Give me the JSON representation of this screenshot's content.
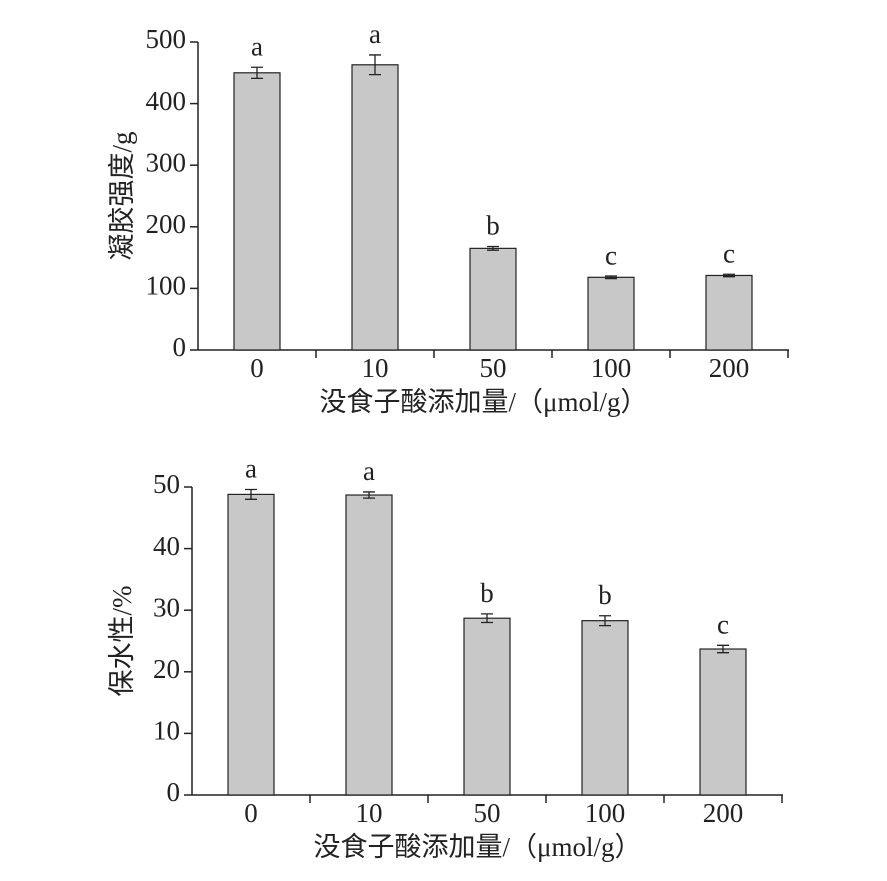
{
  "chart_data": [
    {
      "type": "bar",
      "y_label": "凝胶强度/g",
      "x_label": "没食子酸添加量/（μmol/g）",
      "categories": [
        "0",
        "10",
        "50",
        "100",
        "200"
      ],
      "values": [
        450,
        463,
        165,
        118,
        121
      ],
      "errors": [
        9,
        16,
        3,
        2,
        2
      ],
      "annotations": [
        "a",
        "a",
        "b",
        "c",
        "c"
      ],
      "color": "#c8c8c8",
      "ylim": [
        0,
        500
      ],
      "yticks": [
        0,
        100,
        200,
        300,
        400,
        500
      ]
    },
    {
      "type": "bar",
      "y_label": "保水性/%",
      "x_label": "没食子酸添加量/（μmol/g）",
      "categories": [
        "0",
        "10",
        "50",
        "100",
        "200"
      ],
      "values": [
        48.8,
        48.7,
        28.7,
        28.3,
        23.7
      ],
      "errors": [
        0.8,
        0.5,
        0.7,
        0.8,
        0.6
      ],
      "annotations": [
        "a",
        "a",
        "b",
        "b",
        "c"
      ],
      "color": "#c8c8c8",
      "ylim": [
        0,
        50
      ],
      "yticks": [
        0,
        10,
        20,
        30,
        40,
        50
      ]
    }
  ]
}
